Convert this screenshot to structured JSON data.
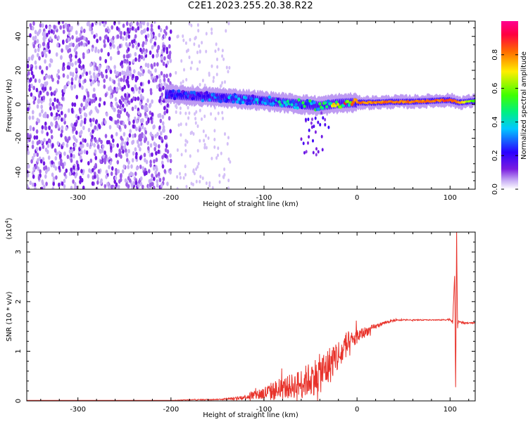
{
  "title": "C2E1.2023.255.20.38.R22",
  "colors": {
    "snr_line": "#e8332b",
    "frame": "#000000",
    "colormap": [
      "#ffffff",
      "#c9b0f5",
      "#7a1de0",
      "#2a00ff",
      "#00c8ff",
      "#00f080",
      "#40ff00",
      "#ffee00",
      "#ff6a00",
      "#ff0040",
      "#ff0090"
    ]
  },
  "chart_data": [
    {
      "type": "heatmap",
      "title": "",
      "xlabel": "Height of straight line (km)",
      "ylabel": "Frequency (Hz)",
      "xlim": [
        -355,
        127
      ],
      "ylim": [
        -50,
        49
      ],
      "xticks": [
        -300,
        -200,
        -100,
        0,
        100
      ],
      "yticks": [
        -40,
        -20,
        0,
        20,
        40
      ],
      "xtick_labels": [
        "-300",
        "-200",
        "-100",
        "0",
        "100"
      ],
      "ytick_labels": [
        "-40",
        "-20",
        "0",
        "20",
        "40"
      ],
      "colorbar": {
        "label": "Normalized spectral amplitude",
        "range": [
          0,
          1
        ],
        "ticks": [
          0.0,
          0.2,
          0.4,
          0.6,
          0.8
        ],
        "tick_labels": [
          "0.0",
          "0.2",
          "0.4",
          "0.6",
          "0.8"
        ]
      },
      "features": {
        "noise_region_x": [
          -355,
          -200
        ],
        "noise_amplitude": 0.12,
        "signal_ridge": {
          "x": [
            -205,
            -180,
            -150,
            -120,
            -100,
            -80,
            -60,
            -40,
            -20,
            0,
            20,
            40,
            60,
            80,
            100,
            110,
            127
          ],
          "freq": [
            6,
            5,
            4,
            3,
            2,
            1,
            0,
            -1,
            0.5,
            1,
            1,
            1.5,
            1.5,
            2,
            2.5,
            1,
            2
          ],
          "amplitude": [
            0.25,
            0.25,
            0.3,
            0.35,
            0.35,
            0.4,
            0.45,
            0.5,
            0.7,
            0.85,
            0.85,
            0.85,
            0.85,
            0.85,
            0.9,
            0.8,
            0.55
          ]
        }
      }
    },
    {
      "type": "line",
      "title": "",
      "xlabel": "Height of straight line (km)",
      "ylabel": "SNR (10 * v/v)",
      "scale_label": "(x10",
      "scale_exp": "4",
      "scale_close": ")",
      "xlim": [
        -355,
        127
      ],
      "ylim": [
        0,
        3.4
      ],
      "xticks": [
        -300,
        -200,
        -100,
        0,
        100
      ],
      "yticks": [
        0,
        1,
        2,
        3
      ],
      "xtick_labels": [
        "-300",
        "-200",
        "-100",
        "0",
        "100"
      ],
      "ytick_labels": [
        "0",
        "1",
        "2",
        "3"
      ],
      "series": [
        {
          "x": [
            -355,
            -300,
            -250,
            -200,
            -180,
            -150,
            -130,
            -120,
            -110,
            -100,
            -90,
            -80,
            -70,
            -60,
            -50,
            -40,
            -30,
            -25,
            -20,
            -15,
            -10,
            -5,
            0,
            10,
            20,
            30,
            40,
            50,
            60,
            70,
            80,
            90,
            100,
            103,
            105,
            106,
            107,
            108,
            109,
            110,
            112,
            115,
            120,
            127
          ],
          "values": [
            0.01,
            0.01,
            0.01,
            0.01,
            0.02,
            0.03,
            0.05,
            0.08,
            0.12,
            0.15,
            0.2,
            0.25,
            0.3,
            0.35,
            0.45,
            0.55,
            0.7,
            0.85,
            0.9,
            1.0,
            1.1,
            1.2,
            1.3,
            1.4,
            1.5,
            1.58,
            1.62,
            1.63,
            1.63,
            1.63,
            1.63,
            1.63,
            1.64,
            1.6,
            2.6,
            0.1,
            3.4,
            1.5,
            1.6,
            1.6,
            1.58,
            1.57,
            1.57,
            1.57
          ],
          "noise": [
            0,
            0,
            0,
            0,
            0.01,
            0.01,
            0.03,
            0.05,
            0.1,
            0.15,
            0.2,
            0.22,
            0.25,
            0.3,
            0.35,
            0.4,
            0.4,
            0.35,
            0.35,
            0.3,
            0.3,
            0.2,
            0.15,
            0.1,
            0.05,
            0.03,
            0.02,
            0.01,
            0.01,
            0.01,
            0.01,
            0.01,
            0.02,
            0.05,
            0.1,
            0.1,
            0.1,
            0.05,
            0.02,
            0.02,
            0.02,
            0.02,
            0.01,
            0.01
          ]
        }
      ]
    }
  ]
}
